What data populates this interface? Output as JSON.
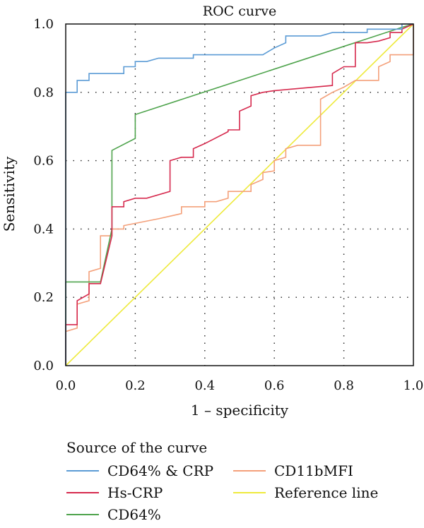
{
  "chart_data": {
    "type": "line",
    "title": "ROC curve",
    "xlabel": "1 – specificity",
    "ylabel": "Sensitivity",
    "xlim": [
      0.0,
      1.0
    ],
    "ylim": [
      0.0,
      1.0
    ],
    "xticks": [
      "0.0",
      "0.2",
      "0.4",
      "0.6",
      "0.8",
      "1.0"
    ],
    "yticks": [
      "0.0",
      "0.2",
      "0.4",
      "0.6",
      "0.8",
      "1.0"
    ],
    "grid": true,
    "legend_title": "Source of the curve",
    "legend_position": "bottom",
    "series": [
      {
        "name": "CD64% & CRP",
        "color": "#5b9bd5",
        "points": [
          [
            0,
            0
          ],
          [
            0,
            0.8
          ],
          [
            0.033,
            0.8
          ],
          [
            0.033,
            0.835
          ],
          [
            0.067,
            0.835
          ],
          [
            0.067,
            0.855
          ],
          [
            0.167,
            0.855
          ],
          [
            0.167,
            0.875
          ],
          [
            0.2,
            0.875
          ],
          [
            0.2,
            0.89
          ],
          [
            0.233,
            0.89
          ],
          [
            0.267,
            0.9
          ],
          [
            0.367,
            0.9
          ],
          [
            0.367,
            0.91
          ],
          [
            0.567,
            0.91
          ],
          [
            0.6,
            0.93
          ],
          [
            0.633,
            0.945
          ],
          [
            0.633,
            0.965
          ],
          [
            0.733,
            0.965
          ],
          [
            0.767,
            0.975
          ],
          [
            0.867,
            0.975
          ],
          [
            0.867,
            0.985
          ],
          [
            0.967,
            0.985
          ],
          [
            0.967,
            1.0
          ],
          [
            1.0,
            1.0
          ]
        ]
      },
      {
        "name": "Hs-CRP",
        "color": "#d6294d",
        "points": [
          [
            0,
            0
          ],
          [
            0,
            0.12
          ],
          [
            0.033,
            0.12
          ],
          [
            0.033,
            0.19
          ],
          [
            0.067,
            0.21
          ],
          [
            0.067,
            0.24
          ],
          [
            0.1,
            0.24
          ],
          [
            0.133,
            0.38
          ],
          [
            0.133,
            0.465
          ],
          [
            0.167,
            0.465
          ],
          [
            0.167,
            0.48
          ],
          [
            0.2,
            0.49
          ],
          [
            0.233,
            0.49
          ],
          [
            0.3,
            0.51
          ],
          [
            0.3,
            0.6
          ],
          [
            0.333,
            0.61
          ],
          [
            0.367,
            0.61
          ],
          [
            0.367,
            0.635
          ],
          [
            0.4,
            0.65
          ],
          [
            0.467,
            0.685
          ],
          [
            0.467,
            0.69
          ],
          [
            0.5,
            0.69
          ],
          [
            0.5,
            0.745
          ],
          [
            0.533,
            0.76
          ],
          [
            0.533,
            0.79
          ],
          [
            0.567,
            0.8
          ],
          [
            0.6,
            0.805
          ],
          [
            0.767,
            0.82
          ],
          [
            0.767,
            0.855
          ],
          [
            0.8,
            0.875
          ],
          [
            0.833,
            0.875
          ],
          [
            0.833,
            0.945
          ],
          [
            0.867,
            0.945
          ],
          [
            0.9,
            0.95
          ],
          [
            0.933,
            0.96
          ],
          [
            0.933,
            0.975
          ],
          [
            0.967,
            0.975
          ],
          [
            0.967,
            0.985
          ],
          [
            1.0,
            1.0
          ]
        ]
      },
      {
        "name": "CD64%",
        "color": "#4ea34c",
        "points": [
          [
            0,
            0
          ],
          [
            0,
            0.245
          ],
          [
            0.1,
            0.245
          ],
          [
            0.133,
            0.4
          ],
          [
            0.133,
            0.63
          ],
          [
            0.2,
            0.665
          ],
          [
            0.2,
            0.735
          ],
          [
            0.967,
            0.99
          ],
          [
            1.0,
            1.0
          ]
        ]
      },
      {
        "name": "CD11bMFI",
        "color": "#f4a07a",
        "points": [
          [
            0,
            0
          ],
          [
            0,
            0.1
          ],
          [
            0.033,
            0.11
          ],
          [
            0.033,
            0.18
          ],
          [
            0.067,
            0.19
          ],
          [
            0.067,
            0.275
          ],
          [
            0.1,
            0.285
          ],
          [
            0.1,
            0.38
          ],
          [
            0.133,
            0.38
          ],
          [
            0.133,
            0.4
          ],
          [
            0.167,
            0.4
          ],
          [
            0.167,
            0.41
          ],
          [
            0.267,
            0.43
          ],
          [
            0.333,
            0.445
          ],
          [
            0.333,
            0.465
          ],
          [
            0.4,
            0.465
          ],
          [
            0.4,
            0.48
          ],
          [
            0.433,
            0.48
          ],
          [
            0.467,
            0.49
          ],
          [
            0.467,
            0.51
          ],
          [
            0.533,
            0.51
          ],
          [
            0.533,
            0.53
          ],
          [
            0.567,
            0.545
          ],
          [
            0.567,
            0.565
          ],
          [
            0.6,
            0.57
          ],
          [
            0.6,
            0.6
          ],
          [
            0.633,
            0.61
          ],
          [
            0.633,
            0.635
          ],
          [
            0.667,
            0.645
          ],
          [
            0.733,
            0.645
          ],
          [
            0.733,
            0.78
          ],
          [
            0.767,
            0.8
          ],
          [
            0.8,
            0.815
          ],
          [
            0.833,
            0.835
          ],
          [
            0.9,
            0.835
          ],
          [
            0.9,
            0.875
          ],
          [
            0.933,
            0.89
          ],
          [
            0.933,
            0.91
          ],
          [
            0.967,
            0.91
          ],
          [
            1.0,
            0.91
          ],
          [
            1.0,
            1.0
          ]
        ]
      },
      {
        "name": "Reference line",
        "color": "#eeea3c",
        "points": [
          [
            0,
            0
          ],
          [
            1,
            1
          ]
        ]
      }
    ]
  }
}
